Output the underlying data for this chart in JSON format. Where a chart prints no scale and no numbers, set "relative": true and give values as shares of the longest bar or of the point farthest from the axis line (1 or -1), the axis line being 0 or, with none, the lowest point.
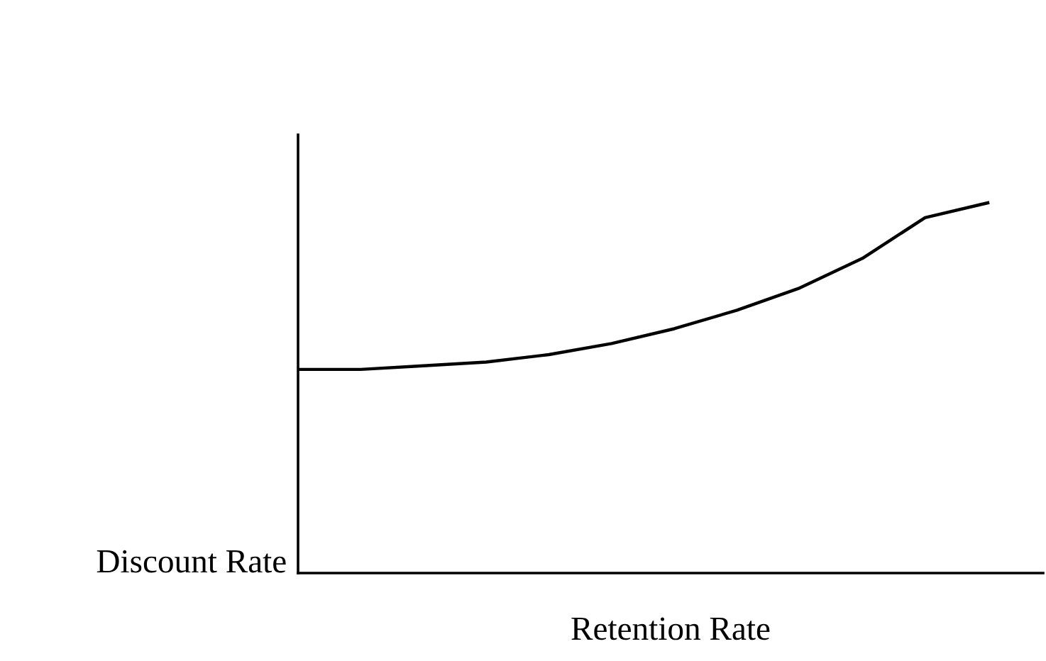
{
  "chart_data": {
    "type": "line",
    "relative": true,
    "xlabel": "Retention Rate",
    "ylabel": "Discount Rate",
    "categories": [
      null,
      null,
      null,
      null,
      null,
      null,
      null,
      null,
      null,
      null,
      null,
      null
    ],
    "series": [
      {
        "color": "#000000",
        "values": [
          0.55,
          0.55,
          0.56,
          0.57,
          0.59,
          0.62,
          0.66,
          0.71,
          0.77,
          0.85,
          0.96,
          1
        ]
      }
    ],
    "legend": false,
    "tick_labels": false,
    "marker": "none",
    "line_style": "solid"
  }
}
